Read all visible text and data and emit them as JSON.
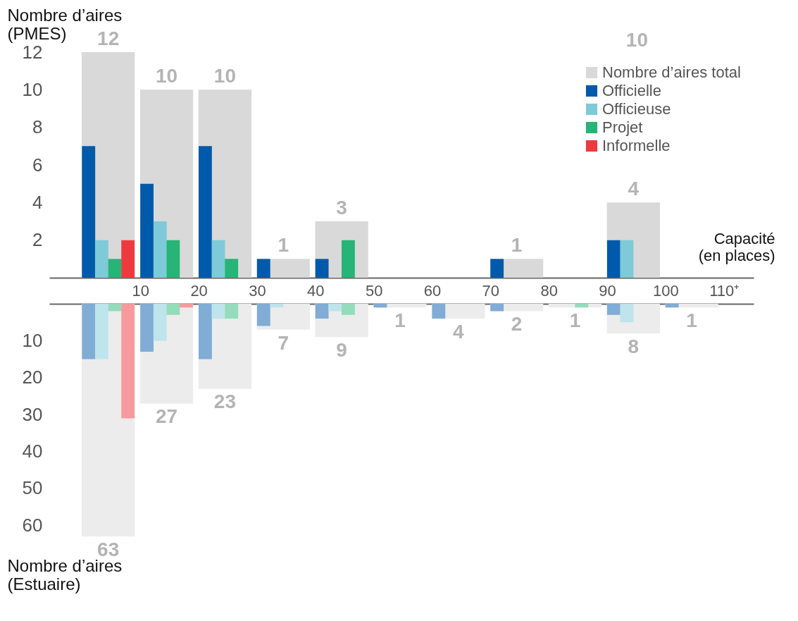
{
  "chart_data": [
    {
      "type": "bar",
      "ylabel": "Nombre d’aires\n(PMES)",
      "xlabel": "Capacité\n(en places)",
      "annotations": [
        "10"
      ],
      "legend": "top right",
      "grid": false,
      "xlim": [
        -5,
        114.5
      ],
      "xticks": [
        10,
        20,
        30,
        40,
        50,
        60,
        70,
        80,
        90,
        100,
        {
          "value": 110,
          "label": "110⁺"
        }
      ],
      "ylim": [
        0,
        12
      ],
      "yticks": [
        2,
        4,
        6,
        8,
        10,
        12
      ],
      "series": [
        {
          "name": "Nombre d’aires total",
          "color": "#d9d9d9",
          "x": [
            4.5,
            14.5,
            24.5,
            34.5,
            44.5,
            74.5,
            94.5
          ],
          "values": [
            12,
            10,
            10,
            1,
            3,
            1,
            4
          ],
          "value_labels": [
            "12",
            "10",
            "10",
            "1",
            "3",
            "1",
            "4"
          ]
        },
        {
          "name": "Officielle",
          "color": "#005aab",
          "x": [
            1.125,
            11.125,
            21.125,
            31.125,
            41.125,
            71.125,
            91.125
          ],
          "values": [
            7,
            5,
            7,
            1,
            1,
            1,
            2
          ]
        },
        {
          "name": "Officieuse",
          "color": "#7ecad8",
          "x": [
            3.375,
            13.375,
            23.375,
            93.375
          ],
          "values": [
            2,
            3,
            2,
            2
          ]
        },
        {
          "name": "Projet",
          "color": "#27b477",
          "x": [
            5.625,
            15.625,
            25.625,
            45.625
          ],
          "values": [
            1,
            2,
            1,
            2
          ]
        },
        {
          "name": "Informelle",
          "color": "#ee3a3f",
          "x": [
            7.875
          ],
          "values": [
            2
          ]
        }
      ]
    },
    {
      "type": "bar",
      "ylabel": "Nombre d’aires\n(Estuaire)",
      "tick_labels": "y",
      "grid": false,
      "xlim": [
        -5,
        114.5
      ],
      "ylim": [
        63,
        0
      ],
      "yticks": [
        10,
        20,
        30,
        40,
        50,
        60
      ],
      "series": [
        {
          "color": "#ececec",
          "x": [
            4.5,
            14.5,
            24.5,
            34.5,
            44.5,
            54.5,
            64.5,
            74.5,
            84.5,
            94.5,
            104.5
          ],
          "values": [
            63,
            27,
            23,
            7,
            9,
            1,
            4,
            2,
            1,
            8,
            1
          ],
          "value_labels": [
            "63",
            "27",
            "23",
            "7",
            "9",
            "1",
            "4",
            "2",
            "1",
            "8",
            "1"
          ]
        },
        {
          "color": "#80acd5",
          "x": [
            1.125,
            11.125,
            21.125,
            31.125,
            41.125,
            51.125,
            61.125,
            71.125,
            91.125,
            101.125
          ],
          "values": [
            15,
            13,
            15,
            6,
            4,
            1,
            4,
            2,
            3,
            1
          ]
        },
        {
          "color": "#bee4ec",
          "x": [
            3.375,
            13.375,
            23.375,
            33.375,
            43.375,
            93.375
          ],
          "values": [
            15,
            10,
            4,
            1,
            2,
            5
          ]
        },
        {
          "color": "#94dcbb",
          "x": [
            5.625,
            15.625,
            25.625,
            45.625,
            85.625
          ],
          "values": [
            2,
            3,
            4,
            3,
            1
          ]
        },
        {
          "color": "#f69a9e",
          "x": [
            7.875,
            17.875
          ],
          "values": [
            31,
            1
          ]
        }
      ]
    }
  ]
}
